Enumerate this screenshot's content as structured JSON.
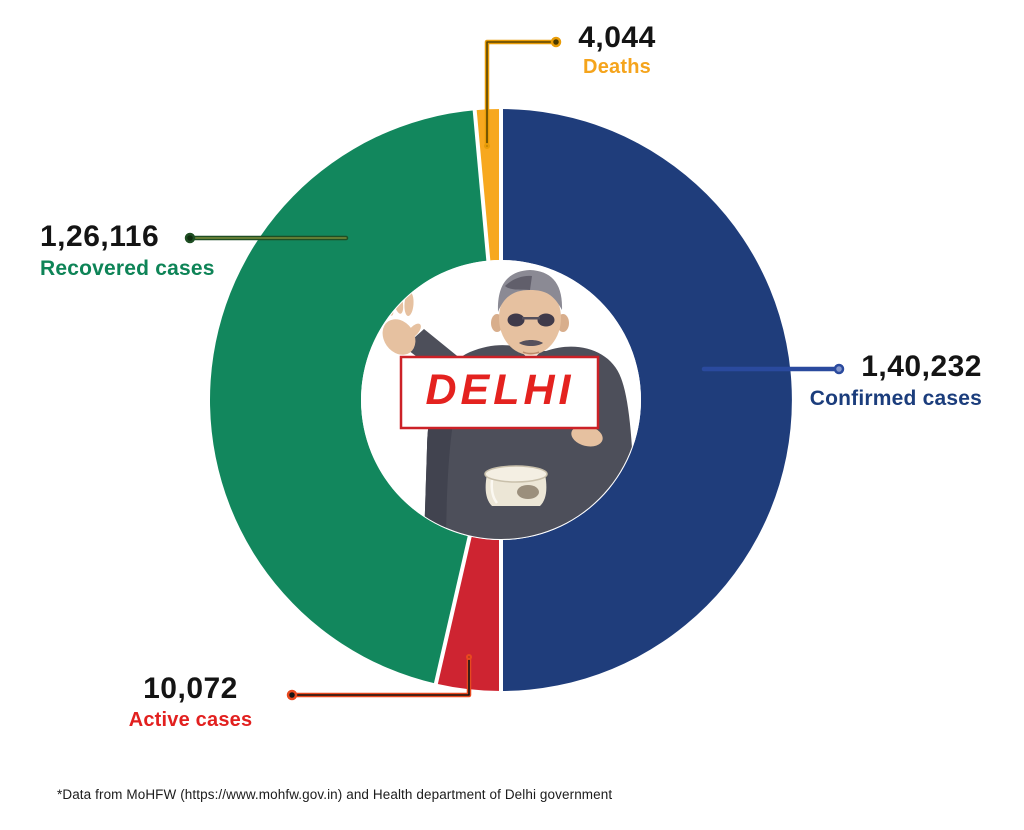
{
  "chart_data": {
    "type": "donut",
    "center_label": "DELHI",
    "center_label_color": "#e4221f",
    "footnote": "*Data from MoHFW (https://www.mohfw.gov.in) and Health department of Delhi government",
    "start_angle_deg": 0,
    "direction": "clockwise",
    "legend_position": "callouts",
    "grid": false,
    "total_of_circle": 280464,
    "slices": [
      {
        "id": "confirmed",
        "label": "Confirmed cases",
        "value": "1,40,232",
        "value_num": 140232,
        "color": "#1f3d7b",
        "label_color": "#1b3d7c",
        "line_color": "#2a4a9e",
        "line_core": "",
        "dot_center": "#8497cc"
      },
      {
        "id": "active",
        "label": "Active cases",
        "value": "10,072",
        "value_num": 10072,
        "color": "#ce2431",
        "label_color": "#e2201f",
        "line_color": "#e8491f",
        "line_core": "#141414",
        "dot_center": "#141414"
      },
      {
        "id": "recovered",
        "label": "Recovered cases",
        "value": "1,26,116",
        "value_num": 126116,
        "color": "#12875d",
        "label_color": "#0e8457",
        "line_color": "#1e4e23",
        "line_core": "#7a8c3a",
        "dot_center": "#0e2c0e"
      },
      {
        "id": "deaths",
        "label": "Deaths",
        "value": "4,044",
        "value_num": 4044,
        "color": "#f7a81f",
        "label_color": "#f5a41c",
        "line_color": "#e89c08",
        "line_core": "#5a4500",
        "dot_center": "#4a3a00"
      }
    ]
  }
}
